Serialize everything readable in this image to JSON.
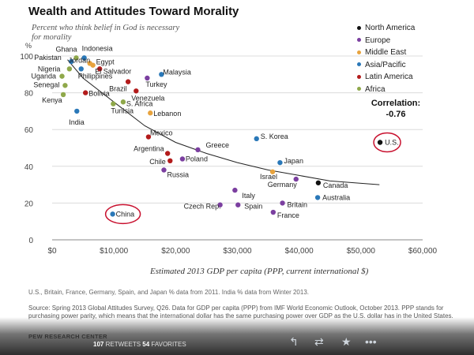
{
  "chart_data": {
    "type": "scatter",
    "title": "Wealth and Attitudes Toward Morality",
    "subtitle": "Percent who think belief in God is necessary for morality",
    "xlabel": "Estimated 2013 GDP per capita (PPP, current international $)",
    "ylabel": "%",
    "xlim": [
      0,
      60000
    ],
    "ylim": [
      0,
      100
    ],
    "xticks": [
      0,
      10000,
      20000,
      30000,
      40000,
      50000,
      60000
    ],
    "xtick_labels": [
      "$0",
      "$10,000",
      "$20,000",
      "$30,000",
      "$40,000",
      "$50,000",
      "$60,000"
    ],
    "yticks": [
      0,
      20,
      40,
      60,
      80,
      100
    ],
    "ytick_labels": [
      "0",
      "20",
      "40",
      "60",
      "80",
      "100"
    ],
    "legend": [
      {
        "name": "North America",
        "color": "#111111"
      },
      {
        "name": "Europe",
        "color": "#7b3fa0"
      },
      {
        "name": "Middle East",
        "color": "#e8a33d"
      },
      {
        "name": "Asia/Pacific",
        "color": "#2a78b8"
      },
      {
        "name": "Latin America",
        "color": "#b31b1b"
      },
      {
        "name": "Africa",
        "color": "#8fa84a"
      }
    ],
    "correlation_label": "Correlation:",
    "correlation_value": "-0.76",
    "trendline": [
      [
        2500,
        98
      ],
      [
        5000,
        88
      ],
      [
        10000,
        75
      ],
      [
        15000,
        62
      ],
      [
        20000,
        53
      ],
      [
        25000,
        47
      ],
      [
        30000,
        42
      ],
      [
        35000,
        38
      ],
      [
        40000,
        35
      ],
      [
        45000,
        32
      ],
      [
        53000,
        30
      ]
    ],
    "points": [
      {
        "label": "Ghana",
        "x": 3900,
        "y": 99,
        "region": "Africa"
      },
      {
        "label": "Indonesia",
        "x": 5200,
        "y": 99,
        "region": "Asia/Pacific"
      },
      {
        "label": "Pakistan",
        "x": 3100,
        "y": 97,
        "region": "Asia/Pacific"
      },
      {
        "label": "Jordan",
        "x": 6100,
        "y": 96,
        "region": "Middle East"
      },
      {
        "label": "Egypt",
        "x": 6600,
        "y": 95,
        "region": "Middle East"
      },
      {
        "label": "Nigeria",
        "x": 2800,
        "y": 93,
        "region": "Africa"
      },
      {
        "label": "Philippines",
        "x": 4700,
        "y": 93,
        "region": "Asia/Pacific"
      },
      {
        "label": "El Salvador",
        "x": 7700,
        "y": 93,
        "region": "Latin America"
      },
      {
        "label": "Malaysia",
        "x": 17700,
        "y": 90,
        "region": "Asia/Pacific"
      },
      {
        "label": "Uganda",
        "x": 1600,
        "y": 89,
        "region": "Africa"
      },
      {
        "label": "Turkey",
        "x": 15400,
        "y": 88,
        "region": "Europe"
      },
      {
        "label": "Senegal",
        "x": 2100,
        "y": 84,
        "region": "Africa"
      },
      {
        "label": "Brazil",
        "x": 12300,
        "y": 86,
        "region": "Latin America"
      },
      {
        "label": "Kenya",
        "x": 1800,
        "y": 79,
        "region": "Africa"
      },
      {
        "label": "Bolivia",
        "x": 5400,
        "y": 80,
        "region": "Latin America"
      },
      {
        "label": "Venezuela",
        "x": 13600,
        "y": 81,
        "region": "Latin America"
      },
      {
        "label": "S. Africa",
        "x": 11500,
        "y": 75,
        "region": "Africa"
      },
      {
        "label": "Tunisia",
        "x": 9900,
        "y": 74,
        "region": "Africa"
      },
      {
        "label": "Lebanon",
        "x": 15900,
        "y": 69,
        "region": "Middle East"
      },
      {
        "label": "India",
        "x": 4000,
        "y": 70,
        "region": "Asia/Pacific"
      },
      {
        "label": "Mexico",
        "x": 15600,
        "y": 56,
        "region": "Latin America"
      },
      {
        "label": "S. Korea",
        "x": 33100,
        "y": 55,
        "region": "Asia/Pacific"
      },
      {
        "label": "U.S.",
        "x": 53100,
        "y": 53,
        "region": "North America"
      },
      {
        "label": "Greece",
        "x": 23600,
        "y": 49,
        "region": "Europe"
      },
      {
        "label": "Argentina",
        "x": 18700,
        "y": 47,
        "region": "Latin America"
      },
      {
        "label": "Poland",
        "x": 21100,
        "y": 44,
        "region": "Europe"
      },
      {
        "label": "Chile",
        "x": 19100,
        "y": 43,
        "region": "Latin America"
      },
      {
        "label": "Japan",
        "x": 36900,
        "y": 42,
        "region": "Asia/Pacific"
      },
      {
        "label": "Russia",
        "x": 18100,
        "y": 38,
        "region": "Europe"
      },
      {
        "label": "Israel",
        "x": 35700,
        "y": 37,
        "region": "Middle East"
      },
      {
        "label": "Germany",
        "x": 39500,
        "y": 33,
        "region": "Europe"
      },
      {
        "label": "Canada",
        "x": 43100,
        "y": 31,
        "region": "North America"
      },
      {
        "label": "Italy",
        "x": 29600,
        "y": 27,
        "region": "Europe"
      },
      {
        "label": "Australia",
        "x": 43000,
        "y": 23,
        "region": "Asia/Pacific"
      },
      {
        "label": "Czech Rep.",
        "x": 27200,
        "y": 19,
        "region": "Europe"
      },
      {
        "label": "Spain",
        "x": 30100,
        "y": 19,
        "region": "Europe"
      },
      {
        "label": "Britain",
        "x": 37300,
        "y": 20,
        "region": "Europe"
      },
      {
        "label": "France",
        "x": 35800,
        "y": 15,
        "region": "Europe"
      },
      {
        "label": "China",
        "x": 9800,
        "y": 14,
        "region": "Asia/Pacific"
      }
    ],
    "highlighted": [
      "China",
      "U.S."
    ]
  },
  "notes": {
    "note": "U.S., Britain, France, Germany, Spain, and Japan % data from 2011. India % data from Winter 2013.",
    "source": "Source: Spring 2013 Global Attitudes Survey, Q26.  Data for GDP per capita (PPP) from IMF World Economic Outlook, October 2013. PPP stands for purchasing power parity, which means that the international dollar has the same purchasing power over GDP as the U.S. dollar has in the United States.",
    "brand": "PEW RESEARCH CENTER"
  },
  "tweet": {
    "retweets_count": "107",
    "retweets_label": "RETWEETS",
    "favorites_count": "54",
    "favorites_label": "FAVORITES",
    "icons": [
      "reply-icon",
      "retweet-icon",
      "favorite-icon",
      "more-icon"
    ]
  }
}
